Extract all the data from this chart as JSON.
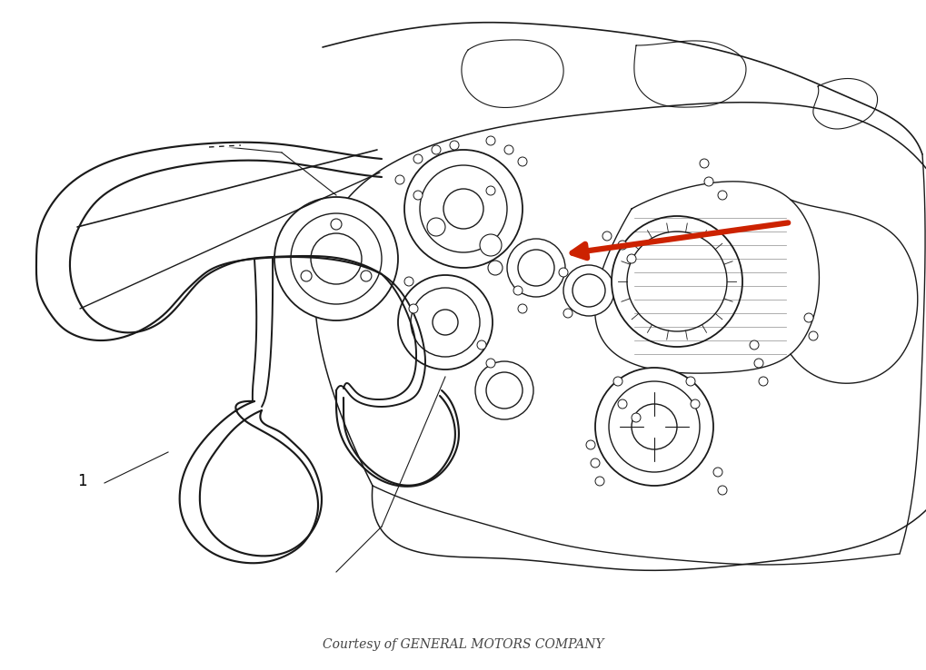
{
  "background_color": "#ffffff",
  "line_color": "#1a1a1a",
  "label_1_text": "1",
  "footer_text": "Courtesy of GENERAL MOTORS COMPANY",
  "footer_fontsize": 10,
  "label_fontsize": 12,
  "arrow_color": "#cc2200",
  "fig_width": 10.19,
  "fig_height": 7.38,
  "dpi": 100,
  "belt_lw": 1.4,
  "engine_lw": 1.0
}
